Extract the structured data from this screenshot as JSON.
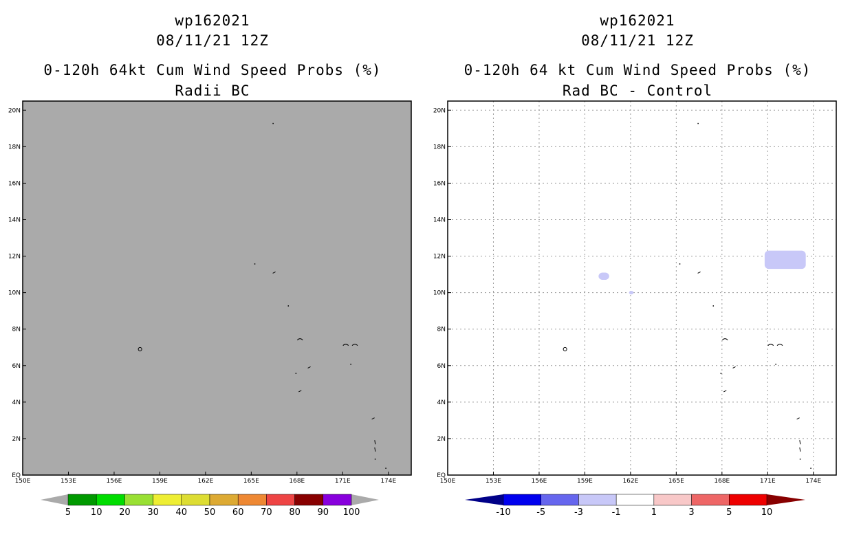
{
  "chart_data": [
    {
      "type": "heatmap",
      "storm_id": "wp162021",
      "datetime": "08/11/21 12Z",
      "title": "0-120h 64kt Cum Wind Speed Probs (%)",
      "subtitle": "Radii BC",
      "x_ticks": [
        "150E",
        "153E",
        "156E",
        "159E",
        "162E",
        "165E",
        "168E",
        "171E",
        "174E"
      ],
      "y_ticks": [
        "EQ",
        "2N",
        "4N",
        "6N",
        "8N",
        "10N",
        "12N",
        "14N",
        "16N",
        "18N",
        "20N"
      ],
      "xlim": [
        150,
        175.5
      ],
      "ylim": [
        0,
        20.5
      ],
      "grid": false,
      "background_color": "#aaaaaa",
      "colorbar": {
        "labels": [
          "5",
          "10",
          "20",
          "30",
          "40",
          "50",
          "60",
          "70",
          "80",
          "90",
          "100"
        ],
        "colors": [
          "#009900",
          "#00dd00",
          "#99e033",
          "#eeee33",
          "#dddd33",
          "#ddaa33",
          "#ee8833",
          "#ee4444",
          "#880000",
          "#8800dd"
        ],
        "end_color": "#aaaaaa"
      }
    },
    {
      "type": "heatmap",
      "storm_id": "wp162021",
      "datetime": "08/11/21 12Z",
      "title": "0-120h 64 kt Cum Wind Speed Probs (%)",
      "subtitle": "Rad BC - Control",
      "x_ticks": [
        "150E",
        "153E",
        "156E",
        "159E",
        "162E",
        "165E",
        "168E",
        "171E",
        "174E"
      ],
      "y_ticks": [
        "EQ",
        "2N",
        "4N",
        "6N",
        "8N",
        "10N",
        "12N",
        "14N",
        "16N",
        "18N",
        "20N"
      ],
      "xlim": [
        150,
        175.5
      ],
      "ylim": [
        0,
        20.5
      ],
      "grid": true,
      "background_color": "#ffffff",
      "colorbar": {
        "labels": [
          "-10",
          "-5",
          "-3",
          "-1",
          "1",
          "3",
          "5",
          "10"
        ],
        "colors": [
          "#0000ee",
          "#6666ee",
          "#c8c8f8",
          "#ffffff",
          "#f8c8c8",
          "#ee6666",
          "#ee0000"
        ],
        "end_left_color": "#000088",
        "end_right_color": "#880000"
      },
      "shaded_regions": [
        {
          "value_range": "-3 to -1",
          "lon_range": [
            170.8,
            173.5
          ],
          "lat_range": [
            11.3,
            12.3
          ]
        },
        {
          "value_range": "-3 to -1",
          "lon_range": [
            159.9,
            160.6
          ],
          "lat_range": [
            10.7,
            11.1
          ]
        },
        {
          "value_range": "-3 to -1",
          "lon_range": [
            161.9,
            162.2
          ],
          "lat_range": [
            9.9,
            10.1
          ]
        }
      ]
    }
  ]
}
